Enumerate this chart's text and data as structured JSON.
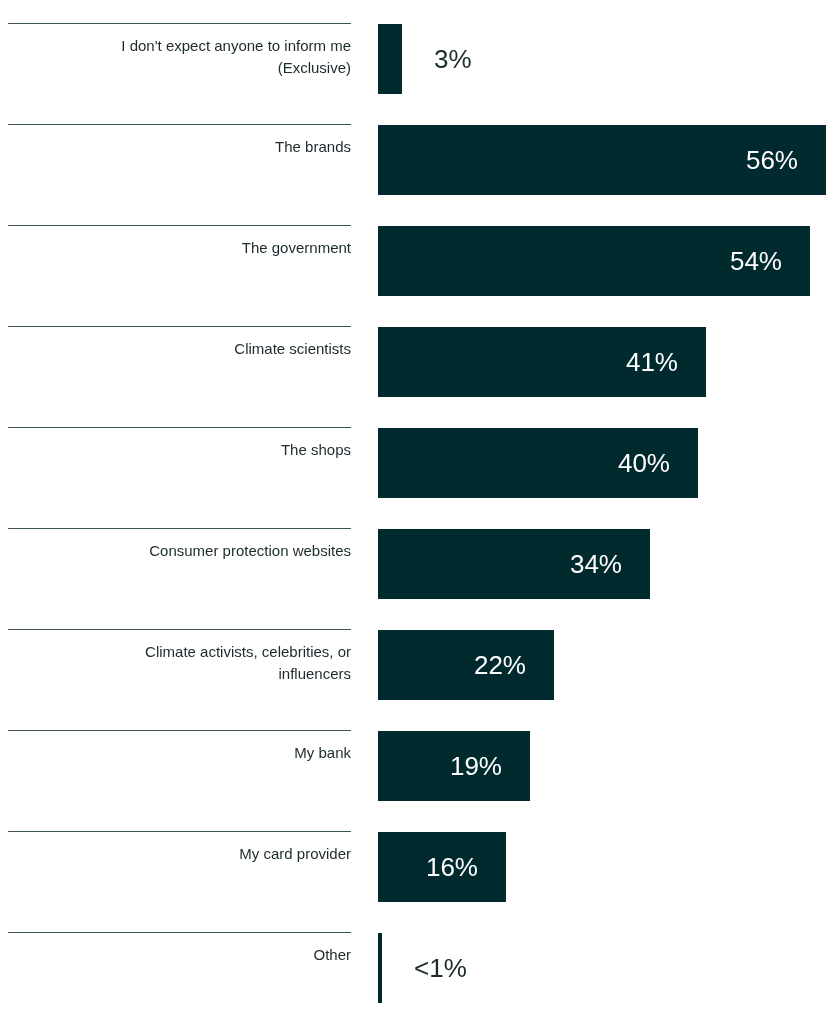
{
  "chart_data": {
    "type": "bar",
    "orientation": "horizontal",
    "categories": [
      "I don't expect anyone to inform me (Exclusive)",
      "The brands",
      "The government",
      "Climate scientists",
      "The shops",
      "Consumer protection websites",
      "Climate activists, celebrities, or influencers",
      "My bank",
      "My card provider",
      "Other"
    ],
    "values": [
      3,
      56,
      54,
      41,
      40,
      34,
      22,
      19,
      16,
      0.5
    ],
    "value_labels": [
      "3%",
      "56%",
      "54%",
      "41%",
      "40%",
      "34%",
      "22%",
      "19%",
      "16%",
      "<1%"
    ],
    "color": "#012a2f",
    "grid": false
  }
}
